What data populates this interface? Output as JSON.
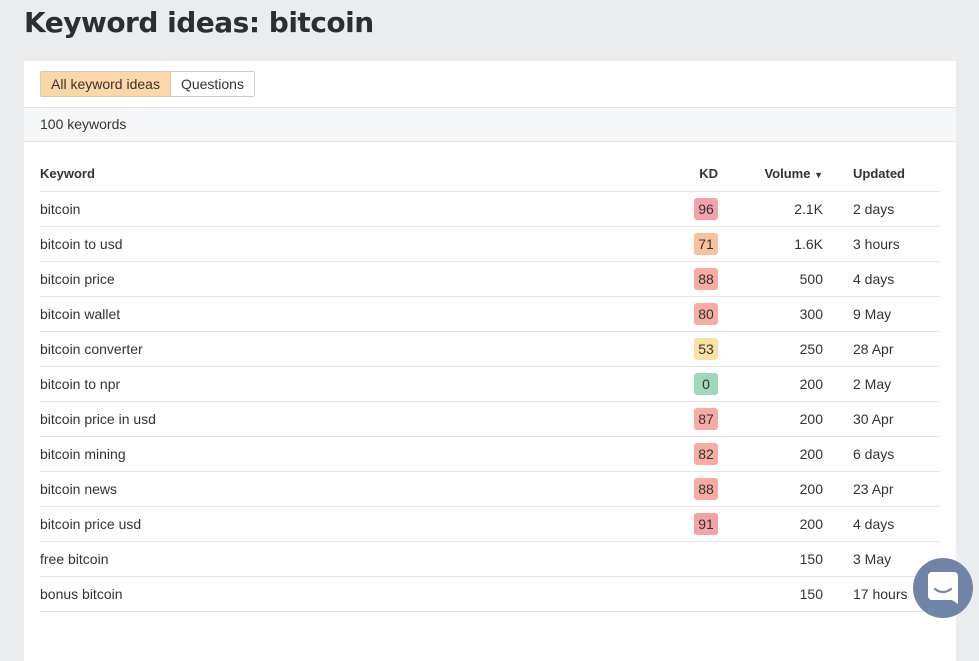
{
  "title": "Keyword ideas: bitcoin",
  "tabs": [
    {
      "label": "All keyword ideas",
      "active": true
    },
    {
      "label": "Questions",
      "active": false
    }
  ],
  "count": "100 keywords",
  "columns": {
    "keyword": "Keyword",
    "kd": "KD",
    "volume": "Volume",
    "updated": "Updated"
  },
  "sort_icon": "caret-down-icon",
  "rows": [
    {
      "keyword": "bitcoin",
      "kd": "96",
      "kd_color": "#f4a2aa",
      "volume": "2.1K",
      "updated": "2 days"
    },
    {
      "keyword": "bitcoin to usd",
      "kd": "71",
      "kd_color": "#f9c29c",
      "volume": "1.6K",
      "updated": "3 hours"
    },
    {
      "keyword": "bitcoin price",
      "kd": "88",
      "kd_color": "#f6aba3",
      "volume": "500",
      "updated": "4 days"
    },
    {
      "keyword": "bitcoin wallet",
      "kd": "80",
      "kd_color": "#f6aba3",
      "volume": "300",
      "updated": "9 May"
    },
    {
      "keyword": "bitcoin converter",
      "kd": "53",
      "kd_color": "#fbe1a1",
      "volume": "250",
      "updated": "28 Apr"
    },
    {
      "keyword": "bitcoin to npr",
      "kd": "0",
      "kd_color": "#9fd9b7",
      "volume": "200",
      "updated": "2 May"
    },
    {
      "keyword": "bitcoin price in usd",
      "kd": "87",
      "kd_color": "#f6aba3",
      "volume": "200",
      "updated": "30 Apr"
    },
    {
      "keyword": "bitcoin mining",
      "kd": "82",
      "kd_color": "#f6aba3",
      "volume": "200",
      "updated": "6 days"
    },
    {
      "keyword": "bitcoin news",
      "kd": "88",
      "kd_color": "#f6aba3",
      "volume": "200",
      "updated": "23 Apr"
    },
    {
      "keyword": "bitcoin price usd",
      "kd": "91",
      "kd_color": "#f4a2aa",
      "volume": "200",
      "updated": "4 days"
    },
    {
      "keyword": "free bitcoin",
      "kd": "",
      "kd_color": "",
      "volume": "150",
      "updated": "3 May"
    },
    {
      "keyword": "bonus bitcoin",
      "kd": "",
      "kd_color": "",
      "volume": "150",
      "updated": "17 hours"
    }
  ],
  "chat_icon": "chat-bubble-icon"
}
